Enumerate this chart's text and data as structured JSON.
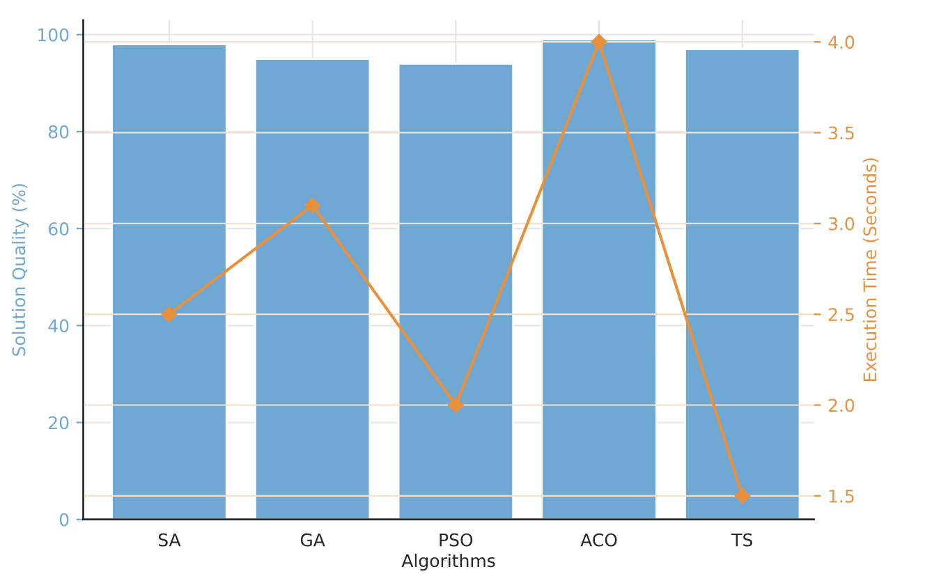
{
  "chart_data": {
    "type": "bar",
    "xlabel": "Algorithms",
    "ylabel": "Solution Quality (%)",
    "y2label": "Execution Time (Seconds)",
    "categories": [
      "SA",
      "GA",
      "PSO",
      "ACO",
      "TS"
    ],
    "series": [
      {
        "color": "#6fa8d2",
        "values": [
          98,
          95,
          94,
          99,
          97
        ]
      },
      {
        "type": "line",
        "axis": "y2",
        "color": "#e8903c",
        "values": [
          2.5,
          3.1,
          2.0,
          4.0,
          1.5
        ],
        "marker": "diamond",
        "line_style": "solid"
      }
    ],
    "ylim": [
      0,
      103
    ],
    "yticks": [
      0,
      20,
      40,
      60,
      80,
      100
    ],
    "y2lim": [
      1.37,
      4.12
    ],
    "y2ticks": [
      1.5,
      {
        "value": 2,
        "label": "2.0"
      },
      2.5,
      {
        "value": 3,
        "label": "3.0"
      },
      3.5,
      {
        "value": 4,
        "label": "4.0"
      }
    ],
    "grid": true,
    "legend": false
  }
}
